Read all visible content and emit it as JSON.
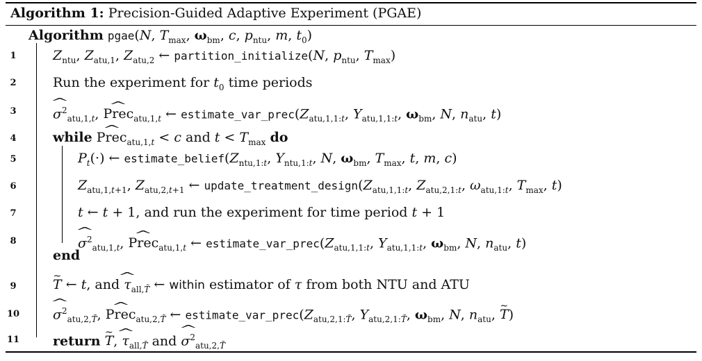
{
  "caption": {
    "label": "Algorithm 1:",
    "title": "Precision-Guided Adaptive Experiment (PGAE)"
  },
  "header": {
    "keyword": "Algorithm",
    "signature": "pgae(N, Tmax, ωbm, c, pntu, m, t0)"
  },
  "lines": [
    {
      "num": "1",
      "text": "Zntu, Zatu,1, Zatu,2 ← partition_initialize(N, pntu, Tmax)"
    },
    {
      "num": "2",
      "text": "Run the experiment for t0 time periods"
    },
    {
      "num": "3",
      "text": "σ²atu,1,t, Precatu,1,t ← estimate_var_prec(Zatu,1,1:t, Yatu,1,1:t, ωbm, N, natu, t)"
    },
    {
      "num": "4",
      "text": "while Precatu,1,t < c and t < Tmax do"
    },
    {
      "num": "5",
      "text": "Pt(·) ← estimate_belief(Zntu,1:t, Yntu,1:t, N, ωbm, Tmax, t, m, c)"
    },
    {
      "num": "6",
      "text": "Zatu,1,t+1, Zatu,2,t+1 ← update_treatment_design(Zatu,1,1:t, Zatu,2,1:t, ωatu,1:t, Tmax, t)"
    },
    {
      "num": "7",
      "text": "t ← t + 1, and run the experiment for time period t + 1"
    },
    {
      "num": "8",
      "text": "σ²atu,1,t, Precatu,1,t ← estimate_var_prec(Zatu,1,1:t, Yatu,1,1:t, ωbm, N, natu, t)"
    },
    {
      "num": "",
      "text": "end"
    },
    {
      "num": "9",
      "text": "T̃ ← t, and τ̂all,T̃ ← within estimator of τ from both NTU and ATU"
    },
    {
      "num": "10",
      "text": "σ²atu,2,T̃, Precatu,2,T̃ ← estimate_var_prec(Zatu,2,1:T̃, Yatu,2,1:T̃, ωbm, N, natu, T̃)"
    },
    {
      "num": "11",
      "text": "return T̃, τ̂all,T̃ and σ²atu,2,T̃"
    }
  ]
}
